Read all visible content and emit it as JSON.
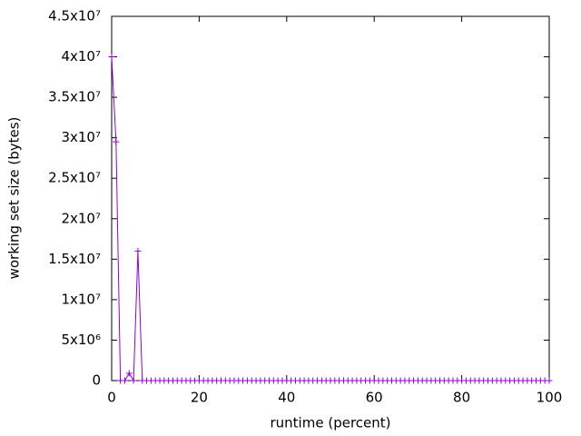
{
  "chart_data": {
    "type": "line",
    "xlabel": "runtime (percent)",
    "ylabel": "working set size (bytes)",
    "color": "#9400d3",
    "x": [
      0,
      1,
      2,
      3,
      4,
      5,
      6,
      7,
      8,
      9,
      10,
      11,
      12,
      13,
      14,
      15,
      16,
      17,
      18,
      19,
      20,
      21,
      22,
      23,
      24,
      25,
      26,
      27,
      28,
      29,
      30,
      31,
      32,
      33,
      34,
      35,
      36,
      37,
      38,
      39,
      40,
      41,
      42,
      43,
      44,
      45,
      46,
      47,
      48,
      49,
      50,
      51,
      52,
      53,
      54,
      55,
      56,
      57,
      58,
      59,
      60,
      61,
      62,
      63,
      64,
      65,
      66,
      67,
      68,
      69,
      70,
      71,
      72,
      73,
      74,
      75,
      76,
      77,
      78,
      79,
      80,
      81,
      82,
      83,
      84,
      85,
      86,
      87,
      88,
      89,
      90,
      91,
      92,
      93,
      94,
      95,
      96,
      97,
      98,
      99,
      100
    ],
    "values": [
      40000000,
      29500000,
      0,
      0,
      900000,
      0,
      16000000,
      0,
      0,
      0,
      0,
      0,
      0,
      0,
      0,
      0,
      0,
      0,
      0,
      0,
      0,
      0,
      0,
      0,
      0,
      0,
      0,
      0,
      0,
      0,
      0,
      0,
      0,
      0,
      0,
      0,
      0,
      0,
      0,
      0,
      0,
      0,
      0,
      0,
      0,
      0,
      0,
      0,
      0,
      0,
      0,
      0,
      0,
      0,
      0,
      0,
      0,
      0,
      0,
      0,
      0,
      0,
      0,
      0,
      0,
      0,
      0,
      0,
      0,
      0,
      0,
      0,
      0,
      0,
      0,
      0,
      0,
      0,
      0,
      0,
      0,
      0,
      0,
      0,
      0,
      0,
      0,
      0,
      0,
      0,
      0,
      0,
      0,
      0,
      0,
      0,
      0,
      0,
      0,
      0,
      0
    ],
    "xlim": [
      0,
      100
    ],
    "xticks": [
      0,
      20,
      40,
      60,
      80,
      100
    ],
    "ylim": [
      0,
      45000000
    ],
    "yticks": [
      0,
      {
        "value": 5000000,
        "label": "5x10⁶"
      },
      {
        "value": 10000000,
        "label": "1x10⁷"
      },
      {
        "value": 15000000,
        "label": "1.5x10⁷"
      },
      {
        "value": 20000000,
        "label": "2x10⁷"
      },
      {
        "value": 25000000,
        "label": "2.5x10⁷"
      },
      {
        "value": 30000000,
        "label": "3x10⁷"
      },
      {
        "value": 35000000,
        "label": "3.5x10⁷"
      },
      {
        "value": 40000000,
        "label": "4x10⁷"
      },
      {
        "value": 45000000,
        "label": "4.5x10⁷"
      }
    ],
    "grid": false
  }
}
